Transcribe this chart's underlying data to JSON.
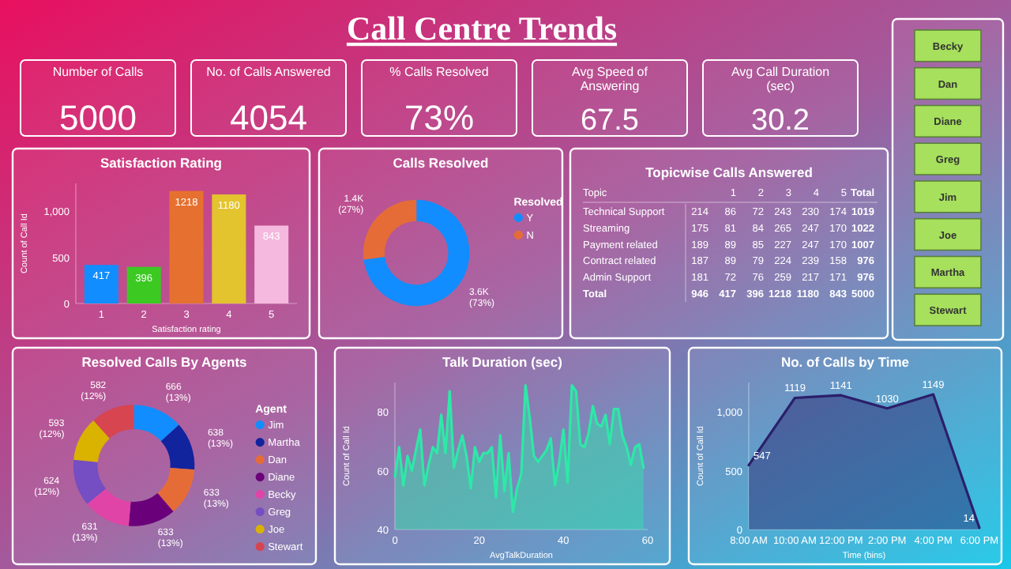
{
  "chart_data": [
    {
      "type": "other",
      "title": "Call Centre Trends",
      "annotations": [
        "Number of Calls",
        "5000",
        "No. of Calls Answered",
        "4054",
        "% Calls Resolved",
        "73%",
        "Avg Speed of Answering",
        "67.5",
        "Avg Call Duration (sec)",
        "30.2"
      ]
    },
    {
      "type": "other",
      "categories": [
        "Becky",
        "Dan",
        "Diane",
        "Greg",
        "Jim",
        "Joe",
        "Martha",
        "Stewart"
      ]
    },
    {
      "type": "bar",
      "title": "Satisfaction Rating",
      "categories": [
        "1",
        "2",
        "3",
        "4",
        "5"
      ],
      "values": [
        417,
        396,
        1218,
        1180,
        843
      ],
      "colors": [
        "#118dff",
        "#3bc922",
        "#e6702f",
        "#e3c32e",
        "#f5b8de"
      ],
      "data_labels": true,
      "xlabel": "Satisfaction rating",
      "ylabel": "Count of Call Id",
      "ylim": [
        0,
        1300
      ],
      "yticks": [
        0,
        500,
        {
          "value": 1000,
          "label": "1,000"
        }
      ]
    },
    {
      "type": "donut",
      "title": "Calls Resolved",
      "categories": [
        "Y",
        "N"
      ],
      "values": [
        73,
        27
      ],
      "colors": [
        "#118dff",
        "#e66c37"
      ],
      "value_labels": [
        "3.6K (73%)",
        "1.4K (27%)"
      ],
      "legend_title": "Resolved",
      "legend": "right"
    },
    {
      "type": "heatmap",
      "title": "Topicwise Calls Answered",
      "data_labels": true,
      "ylabel": "Topic",
      "categories": [
        null,
        "1",
        "2",
        "3",
        "4",
        "5",
        "Total"
      ],
      "y_categories": [
        "Technical Support",
        "Streaming",
        "Payment related",
        "Contract related",
        "Admin Support",
        "Total"
      ],
      "cells": [
        [
          214,
          86,
          72,
          243,
          230,
          174,
          1019
        ],
        [
          175,
          81,
          84,
          265,
          247,
          170,
          1022
        ],
        [
          189,
          89,
          85,
          227,
          247,
          170,
          1007
        ],
        [
          187,
          89,
          79,
          224,
          239,
          158,
          976
        ],
        [
          181,
          72,
          76,
          259,
          217,
          171,
          976
        ],
        [
          946,
          417,
          396,
          1218,
          1180,
          843,
          5000
        ]
      ]
    },
    {
      "type": "donut",
      "title": "Resolved Calls By Agents",
      "categories": [
        "Jim",
        "Martha",
        "Dan",
        "Diane",
        "Becky",
        "Greg",
        "Joe",
        "Stewart"
      ],
      "values": [
        666,
        638,
        633,
        633,
        631,
        624,
        593,
        582
      ],
      "colors": [
        "#118dff",
        "#12239e",
        "#e66c37",
        "#6b007b",
        "#e044a7",
        "#744ec2",
        "#d9b300",
        "#d64550"
      ],
      "value_labels": [
        "666 (13%)",
        "638 (13%)",
        "633 (13%)",
        "633 (13%)",
        "631 (13%)",
        "624 (12%)",
        "593 (12%)",
        "582 (12%)"
      ],
      "legend_title": "Agent",
      "legend": "right"
    },
    {
      "type": "area",
      "title": "Talk Duration (sec)",
      "xlabel": "AvgTalkDuration",
      "ylabel": "Count of Call Id",
      "x": [
        0,
        1,
        2,
        3,
        4,
        5,
        6,
        7,
        8,
        9,
        10,
        11,
        12,
        13,
        14,
        15,
        16,
        17,
        18,
        19,
        20,
        21,
        22,
        23,
        24,
        25,
        26,
        27,
        28,
        29,
        30,
        31,
        32,
        33,
        34,
        35,
        36,
        37,
        38,
        39,
        40,
        41,
        42,
        43,
        44,
        45,
        46,
        47,
        48,
        49,
        50,
        51,
        52,
        53,
        54,
        55,
        56,
        57,
        58,
        59
      ],
      "xlim": [
        0,
        60
      ],
      "xticks": [
        0,
        20,
        40,
        60
      ],
      "ylim": [
        40,
        90
      ],
      "yticks": [
        40,
        60,
        80
      ],
      "series": [
        {
          "color": "#2ee8a8",
          "values": [
            58,
            68,
            55,
            65,
            60,
            67,
            74,
            55,
            62,
            68,
            66,
            79,
            66,
            87,
            61,
            67,
            72,
            65,
            54,
            68,
            63,
            66,
            66,
            68,
            51,
            72,
            53,
            66,
            46,
            54,
            59,
            89,
            78,
            65,
            63,
            65,
            67,
            71,
            55,
            63,
            74,
            56,
            89,
            87,
            69,
            68,
            73,
            82,
            76,
            75,
            79,
            69,
            81,
            81,
            72,
            68,
            62,
            68,
            69,
            61
          ]
        }
      ]
    },
    {
      "type": "area",
      "title": "No. of Calls by Time",
      "xlabel": "Time (bins)",
      "ylabel": "Count of Call Id",
      "x": [
        8,
        10,
        12,
        14,
        16,
        18
      ],
      "xlim": [
        8,
        18
      ],
      "xticks": [
        {
          "value": 8,
          "label": "8:00 AM"
        },
        {
          "value": 10,
          "label": "10:00 AM"
        },
        {
          "value": 12,
          "label": "12:00 PM"
        },
        {
          "value": 14,
          "label": "2:00 PM"
        },
        {
          "value": 16,
          "label": "4:00 PM"
        },
        {
          "value": 18,
          "label": "6:00 PM"
        }
      ],
      "ylim": [
        0,
        1250
      ],
      "yticks": [
        0,
        500,
        {
          "value": 1000,
          "label": "1,000"
        }
      ],
      "data_labels": true,
      "series": [
        {
          "color": "#2b1f6b",
          "values": [
            547,
            1119,
            1141,
            1030,
            1149,
            14
          ]
        }
      ]
    }
  ]
}
